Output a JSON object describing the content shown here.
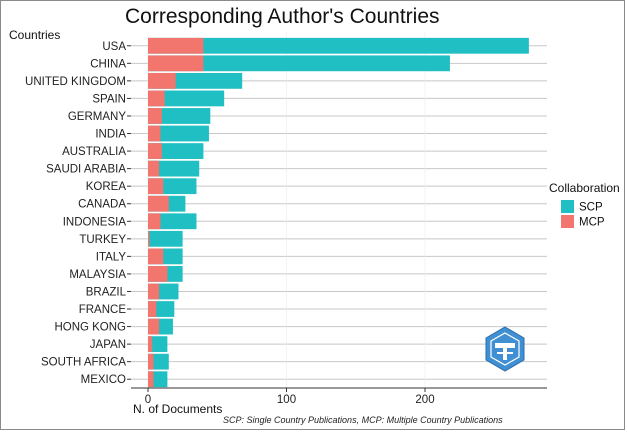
{
  "chart_data": {
    "type": "bar",
    "orientation": "horizontal",
    "stacked": true,
    "title": "Corresponding Author's Countries",
    "ylabel": "Countries",
    "xlabel": "N. of Documents",
    "caption": "SCP: Single Country Publications, MCP: Multiple Country Publications",
    "xlim": [
      0,
      285
    ],
    "xticks": [
      0,
      100,
      200
    ],
    "grid": true,
    "legend": {
      "title": "Collaboration",
      "placement": "right",
      "entries": [
        {
          "name": "SCP",
          "color": "#1FBFC3"
        },
        {
          "name": "MCP",
          "color": "#F2766D"
        }
      ]
    },
    "categories": [
      "USA",
      "CHINA",
      "UNITED KINGDOM",
      "SPAIN",
      "GERMANY",
      "INDIA",
      "AUSTRALIA",
      "SAUDI ARABIA",
      "KOREA",
      "CANADA",
      "INDONESIA",
      "TURKEY",
      "ITALY",
      "MALAYSIA",
      "BRAZIL",
      "FRANCE",
      "HONG KONG",
      "JAPAN",
      "SOUTH AFRICA",
      "MEXICO"
    ],
    "series": [
      {
        "name": "SCP",
        "values": [
          235,
          178,
          48,
          43,
          35,
          35,
          30,
          29,
          24,
          12,
          26,
          24,
          14,
          11,
          14,
          13,
          10,
          11,
          11,
          10
        ]
      },
      {
        "name": "MCP",
        "values": [
          40,
          40,
          20,
          12,
          10,
          9,
          10,
          8,
          11,
          15,
          9,
          1,
          11,
          14,
          8,
          6,
          8,
          3,
          4,
          4
        ]
      }
    ]
  }
}
